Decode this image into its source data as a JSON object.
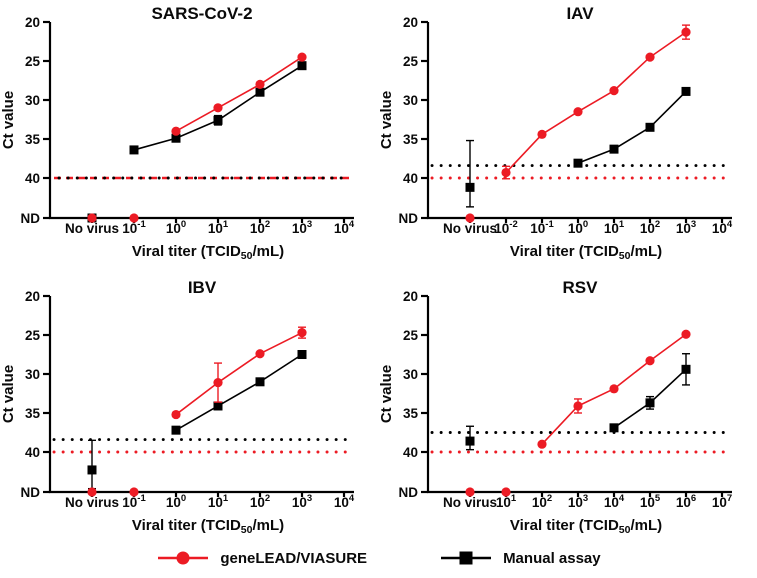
{
  "figure": {
    "background": "#ffffff"
  },
  "palette": {
    "red": "#ec1b24",
    "black": "#000000"
  },
  "legend": {
    "items": [
      {
        "label": "geneLEAD/VIASURE",
        "color": "#ec1b24",
        "marker": "circle"
      },
      {
        "label": "Manual assay",
        "color": "#000000",
        "marker": "square"
      }
    ]
  },
  "axes_shared": {
    "ylabel": "Ct value",
    "xlabel": "Viral titer (TCID50/mL)",
    "xlabel_parts": {
      "pre": "Viral titer (TCID",
      "sub": "50",
      "post": "/mL)"
    },
    "yticks": [
      "20",
      "25",
      "30",
      "35",
      "40",
      "ND"
    ],
    "ylim": [
      20,
      40
    ],
    "y_axis_reversed": true,
    "nd_label": "ND"
  },
  "chart_data": [
    {
      "type": "line",
      "title": "SARS-CoV-2",
      "ylabel": "Ct value",
      "xlabel": "Viral titer (TCID50/mL)",
      "ylim": [
        20,
        40
      ],
      "y_axis_reversed": true,
      "categories": [
        "No virus",
        "10^-1",
        "10^0",
        "10^1",
        "10^2",
        "10^3",
        "10^4"
      ],
      "thresholds": [
        {
          "value": 40,
          "color": "#ec1b24",
          "style": "dashed"
        },
        {
          "value": 40,
          "color": "#000000",
          "style": "dotted"
        }
      ],
      "series": [
        {
          "name": "geneLEAD/VIASURE",
          "marker": "circle",
          "color": "#ec1b24",
          "values": [
            "ND",
            "ND",
            34.0,
            31.0,
            28.0,
            24.5,
            null
          ],
          "errors": [
            null,
            null,
            null,
            null,
            null,
            null,
            null
          ]
        },
        {
          "name": "Manual assay",
          "marker": "square",
          "color": "#000000",
          "values": [
            "ND",
            36.4,
            34.9,
            32.6,
            29.0,
            25.6,
            null
          ],
          "errors": [
            null,
            null,
            null,
            0.6,
            null,
            null,
            null
          ]
        }
      ]
    },
    {
      "type": "line",
      "title": "IAV",
      "ylabel": "Ct value",
      "xlabel": "Viral titer (TCID50/mL)",
      "ylim": [
        20,
        40
      ],
      "y_axis_reversed": true,
      "categories": [
        "No virus",
        "10^-2",
        "10^-1",
        "10^0",
        "10^1",
        "10^2",
        "10^3",
        "10^4"
      ],
      "thresholds": [
        {
          "value": 38.4,
          "color": "#000000",
          "style": "dotted"
        },
        {
          "value": 40,
          "color": "#ec1b24",
          "style": "dotted"
        }
      ],
      "series": [
        {
          "name": "geneLEAD/VIASURE",
          "marker": "circle",
          "color": "#ec1b24",
          "values": [
            "ND",
            39.3,
            34.4,
            31.5,
            28.8,
            24.5,
            21.3,
            null
          ],
          "errors": [
            null,
            0.8,
            null,
            null,
            null,
            null,
            0.9,
            null
          ]
        },
        {
          "name": "Manual assay",
          "marker": "square",
          "color": "#000000",
          "values": [
            41.2,
            null,
            null,
            38.1,
            36.3,
            33.5,
            28.9,
            null
          ],
          "errors": [
            {
              "up": 6.0,
              "down": 2.5
            },
            null,
            null,
            null,
            null,
            null,
            null,
            null
          ]
        }
      ]
    },
    {
      "type": "line",
      "title": "IBV",
      "ylabel": "Ct value",
      "xlabel": "Viral titer (TCID50/mL)",
      "ylim": [
        20,
        40
      ],
      "y_axis_reversed": true,
      "categories": [
        "No virus",
        "10^-1",
        "10^0",
        "10^1",
        "10^2",
        "10^3",
        "10^4"
      ],
      "thresholds": [
        {
          "value": 38.4,
          "color": "#000000",
          "style": "dotted"
        },
        {
          "value": 40,
          "color": "#ec1b24",
          "style": "dotted"
        }
      ],
      "series": [
        {
          "name": "geneLEAD/VIASURE",
          "marker": "circle",
          "color": "#ec1b24",
          "values": [
            "ND",
            "ND",
            35.2,
            31.1,
            27.4,
            24.7,
            null
          ],
          "errors": [
            null,
            null,
            null,
            2.5,
            null,
            0.7,
            null
          ]
        },
        {
          "name": "Manual assay",
          "marker": "square",
          "color": "#000000",
          "values": [
            42.3,
            null,
            37.2,
            34.1,
            31.0,
            27.5,
            null
          ],
          "errors": [
            {
              "up": 3.8,
              "down": 2.4
            },
            null,
            null,
            null,
            null,
            null,
            null
          ]
        }
      ]
    },
    {
      "type": "line",
      "title": "RSV",
      "ylabel": "Ct value",
      "xlabel": "Viral titer (TCID50/mL)",
      "ylim": [
        20,
        40
      ],
      "y_axis_reversed": true,
      "categories": [
        "No virus",
        "10^1",
        "10^2",
        "10^3",
        "10^4",
        "10^5",
        "10^6",
        "10^7"
      ],
      "thresholds": [
        {
          "value": 37.5,
          "color": "#000000",
          "style": "dotted"
        },
        {
          "value": 40,
          "color": "#ec1b24",
          "style": "dotted"
        }
      ],
      "series": [
        {
          "name": "geneLEAD/VIASURE",
          "marker": "circle",
          "color": "#ec1b24",
          "values": [
            "ND",
            "ND",
            39.0,
            34.1,
            31.9,
            28.3,
            24.9,
            null
          ],
          "errors": [
            null,
            null,
            null,
            0.9,
            null,
            null,
            null,
            null
          ]
        },
        {
          "name": "Manual assay",
          "marker": "square",
          "color": "#000000",
          "values": [
            38.6,
            null,
            null,
            null,
            36.9,
            33.7,
            29.4,
            null
          ],
          "errors": [
            {
              "up": 1.9,
              "down": 1.1
            },
            null,
            null,
            null,
            null,
            0.8,
            2.0,
            null
          ]
        }
      ]
    }
  ]
}
